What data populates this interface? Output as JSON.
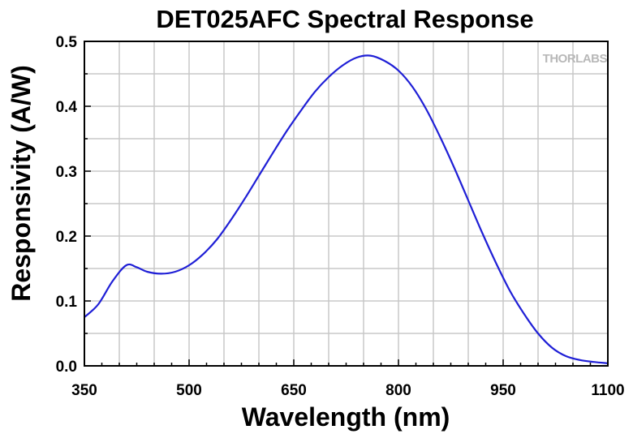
{
  "chart_data": {
    "type": "line",
    "title": "DET025AFC Spectral Response",
    "xlabel": "Wavelength (nm)",
    "ylabel": "Responsivity (A/W)",
    "xlim": [
      350,
      1100
    ],
    "ylim": [
      0,
      0.5
    ],
    "xticks": [
      "350",
      "500",
      "650",
      "800",
      "950",
      "1100"
    ],
    "yticks": [
      "0.0",
      "0.1",
      "0.2",
      "0.3",
      "0.4",
      "0.5"
    ],
    "grid": true,
    "watermark": "THORLABS",
    "line_color": "#1f1fd6",
    "series": [
      {
        "x": [
          350,
          370,
          390,
          410,
          425,
          440,
          460,
          480,
          500,
          520,
          540,
          560,
          580,
          600,
          620,
          640,
          660,
          680,
          700,
          720,
          740,
          760,
          780,
          800,
          820,
          840,
          860,
          880,
          900,
          920,
          940,
          960,
          980,
          1000,
          1020,
          1040,
          1060,
          1080,
          1100
        ],
        "y": [
          0.075,
          0.095,
          0.13,
          0.155,
          0.152,
          0.145,
          0.142,
          0.145,
          0.155,
          0.172,
          0.195,
          0.225,
          0.258,
          0.293,
          0.328,
          0.362,
          0.393,
          0.422,
          0.445,
          0.463,
          0.475,
          0.478,
          0.47,
          0.455,
          0.43,
          0.395,
          0.352,
          0.305,
          0.255,
          0.205,
          0.158,
          0.115,
          0.08,
          0.05,
          0.028,
          0.015,
          0.009,
          0.006,
          0.004
        ]
      }
    ]
  }
}
